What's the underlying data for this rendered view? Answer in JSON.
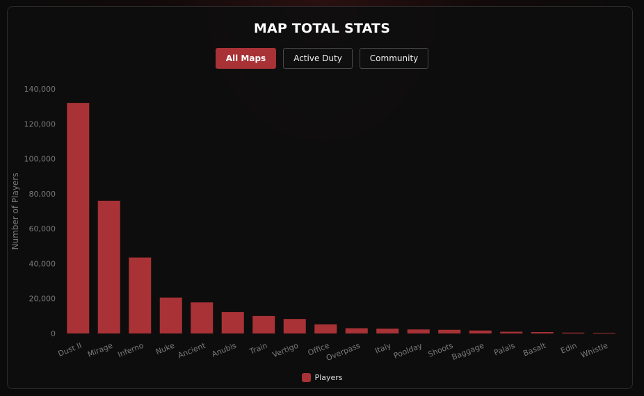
{
  "header": {
    "title": "MAP TOTAL STATS"
  },
  "tabs": [
    {
      "label": "All Maps",
      "active": true
    },
    {
      "label": "Active Duty",
      "active": false
    },
    {
      "label": "Community",
      "active": false
    }
  ],
  "colors": {
    "accent": "#a83236",
    "bar": "#a83236",
    "axis_text": "#7a7a7a"
  },
  "legend": {
    "label": "Players"
  },
  "chart_data": {
    "type": "bar",
    "categories": [
      "Dust II",
      "Mirage",
      "Inferno",
      "Nuke",
      "Ancient",
      "Anubis",
      "Train",
      "Vertigo",
      "Office",
      "Overpass",
      "Italy",
      "Poolday",
      "Shoots",
      "Baggage",
      "Palais",
      "Basalt",
      "Edin",
      "Whistle"
    ],
    "series": [
      {
        "name": "Players",
        "values": [
          132000,
          76000,
          43500,
          20500,
          17800,
          12300,
          10000,
          8300,
          5200,
          3000,
          2800,
          2300,
          2100,
          1700,
          1000,
          800,
          500,
          400
        ]
      }
    ],
    "ylabel": "Number of Players",
    "xlabel": "",
    "ylim": [
      0,
      140000
    ],
    "yticks": [
      "0",
      "20,000",
      "40,000",
      "60,000",
      "80,000",
      "100,000",
      "120,000",
      "140,000"
    ],
    "legend_position": "bottom-center",
    "grid": false
  }
}
